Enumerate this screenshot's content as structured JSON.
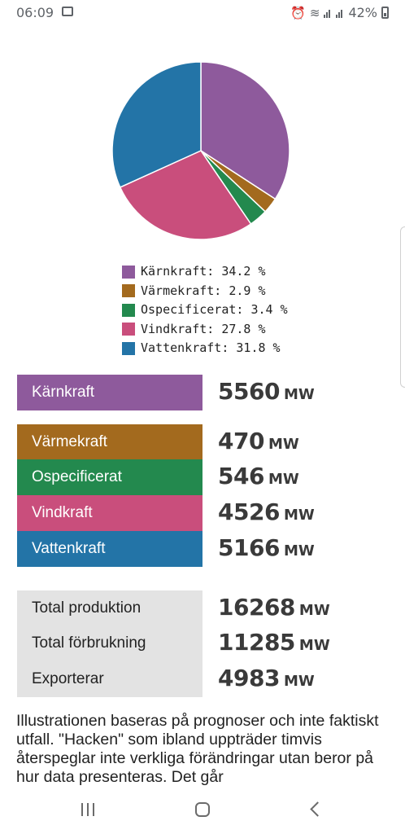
{
  "status_bar": {
    "time": "06:09",
    "battery": "42%"
  },
  "chart_data": {
    "type": "pie",
    "categories": [
      "Kärnkraft",
      "Värmekraft",
      "Ospecificerat",
      "Vindkraft",
      "Vattenkraft"
    ],
    "values": [
      34.2,
      2.9,
      3.4,
      27.8,
      31.8
    ],
    "colors": [
      "#8e5a9c",
      "#a36a1e",
      "#23894e",
      "#c94e7c",
      "#2374a7"
    ],
    "legend": [
      {
        "label": "Kärnkraft: 34.2 %",
        "color": "#8e5a9c"
      },
      {
        "label": "Värmekraft: 2.9 %",
        "color": "#a36a1e"
      },
      {
        "label": "Ospecificerat: 3.4 %",
        "color": "#23894e"
      },
      {
        "label": "Vindkraft: 27.8 %",
        "color": "#c94e7c"
      },
      {
        "label": "Vattenkraft: 31.8 %",
        "color": "#2374a7"
      }
    ]
  },
  "sources": [
    {
      "label": "Kärnkraft",
      "value": "5560",
      "unit": "MW",
      "color": "#8e5a9c"
    },
    {
      "label": "Värmekraft",
      "value": "470",
      "unit": "MW",
      "color": "#a36a1e"
    },
    {
      "label": "Ospecificerat",
      "value": "546",
      "unit": "MW",
      "color": "#23894e"
    },
    {
      "label": "Vindkraft",
      "value": "4526",
      "unit": "MW",
      "color": "#c94e7c"
    },
    {
      "label": "Vattenkraft",
      "value": "5166",
      "unit": "MW",
      "color": "#2374a7"
    }
  ],
  "totals": [
    {
      "label": "Total produktion",
      "value": "16268",
      "unit": "MW"
    },
    {
      "label": "Total förbrukning",
      "value": "11285",
      "unit": "MW"
    },
    {
      "label": "Exporterar",
      "value": "4983",
      "unit": "MW"
    }
  ],
  "description": "Illustrationen baseras på prognoser och inte faktiskt utfall. \"Hacken\" som ibland uppträder timvis återspeglar inte verkliga förändringar utan beror på hur data presenteras. Det går"
}
